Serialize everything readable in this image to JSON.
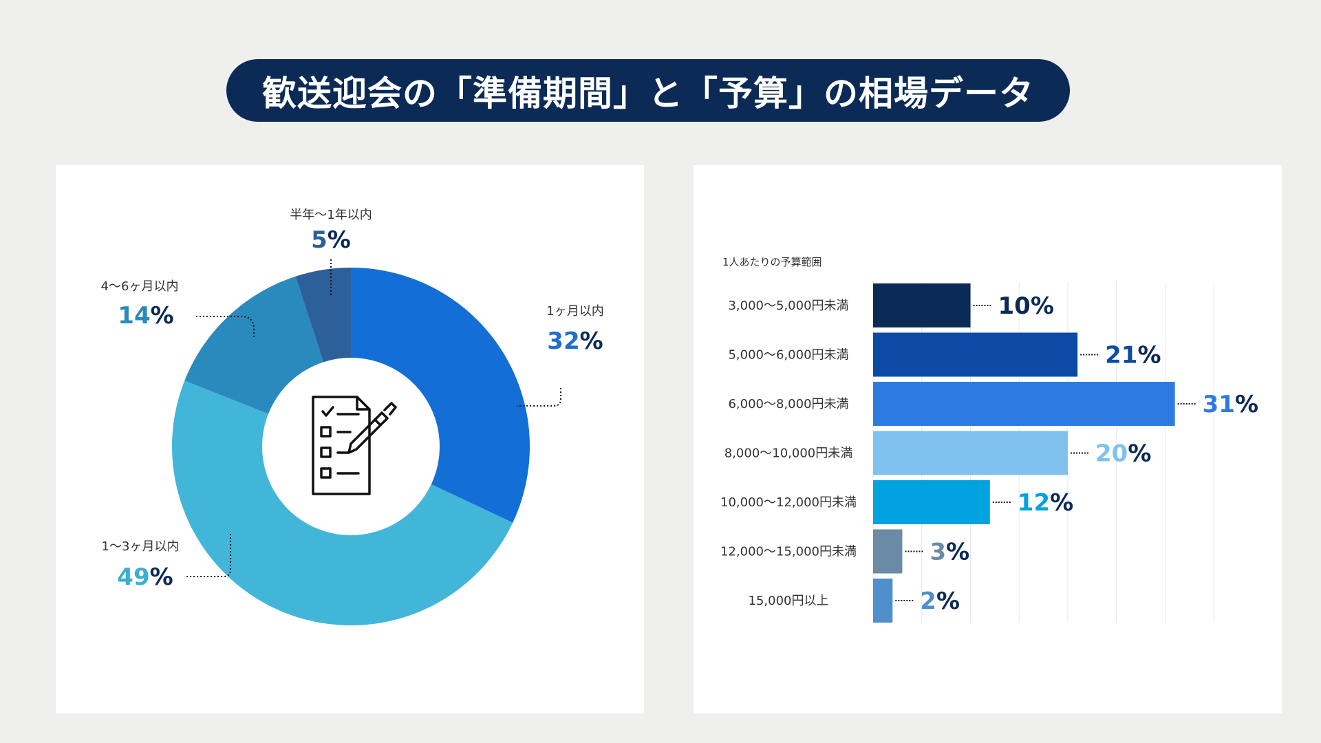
{
  "title": "歓送迎会の「準備期間」と「予算」の相場データ",
  "icon": "checklist-with-pen-icon",
  "colors": {
    "navy": "#0b2a56",
    "pct_symbol": "#0b2a56"
  },
  "chart_data": [
    {
      "type": "pie",
      "variant": "donut",
      "title": "",
      "slices": [
        {
          "label": "1ヶ月以内",
          "value": 32,
          "value_text": "32",
          "color": "#136fd6",
          "text_color": "#1f6fc8"
        },
        {
          "label": "1〜3ヶ月以内",
          "value": 49,
          "value_text": "49",
          "color": "#41b6d8",
          "text_color": "#3aafd3"
        },
        {
          "label": "4〜6ヶ月以内",
          "value": 14,
          "value_text": "14",
          "color": "#2a89bd",
          "text_color": "#2a89bd"
        },
        {
          "label": "半年〜1年以内",
          "value": 5,
          "value_text": "5",
          "color": "#2d5f9a",
          "text_color": "#2d5f9a"
        }
      ],
      "percent_sign": "%"
    },
    {
      "type": "bar",
      "orientation": "horizontal",
      "title": "1人あたりの予算範囲",
      "categories": [
        "3,000〜5,000円未満",
        "5,000〜6,000円未満",
        "6,000〜8,000円未満",
        "8,000〜10,000円未満",
        "10,000〜12,000円未満",
        "12,000〜15,000円未満",
        "15,000円以上"
      ],
      "values": [
        10,
        21,
        31,
        20,
        12,
        3,
        2
      ],
      "value_texts": [
        "10",
        "21",
        "31",
        "20",
        "12",
        "3",
        "2"
      ],
      "colors": [
        "#0b2a56",
        "#0c4aa6",
        "#2d7be2",
        "#7fc2ef",
        "#00a3e0",
        "#6b8aa5",
        "#4e8fcc"
      ],
      "xlim": [
        0,
        35
      ],
      "grid": true,
      "percent_sign": "%"
    }
  ]
}
